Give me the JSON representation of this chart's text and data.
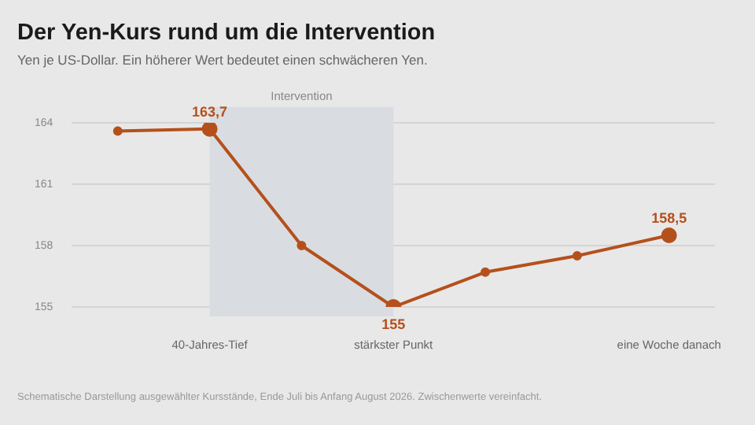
{
  "chart_data": {
    "type": "line",
    "title": "Der Yen-Kurs rund um die Intervention",
    "subtitle": "Yen je US-Dollar. Ein höherer Wert bedeutet einen schwächeren Yen.",
    "annotations": [
      "Schematische Darstellung ausgewählter Kursstände, Ende Juli bis Anfang August 2026. Zwischenwerte vereinfacht."
    ],
    "categories": [
      null,
      "40-Jahres-Tief",
      null,
      "stärkster Punkt",
      null,
      null,
      "eine Woche danach"
    ],
    "series": [
      {
        "color": "#b5501c",
        "values": [
          163.6,
          163.7,
          158.0,
          155,
          156.7,
          157.5,
          158.5
        ],
        "value_labels": [
          null,
          "163,7",
          null,
          "155",
          null,
          null,
          "158,5"
        ]
      }
    ],
    "ylim": [
      155,
      164
    ],
    "yticks": [
      155,
      158,
      161,
      164
    ],
    "grid": "y",
    "marker": "circle",
    "legend": false,
    "bands": [
      {
        "axis": "x",
        "from": "40-Jahres-Tief",
        "to": "stärkster Punkt",
        "label": "Intervention",
        "color": "#d9dde1"
      }
    ]
  }
}
